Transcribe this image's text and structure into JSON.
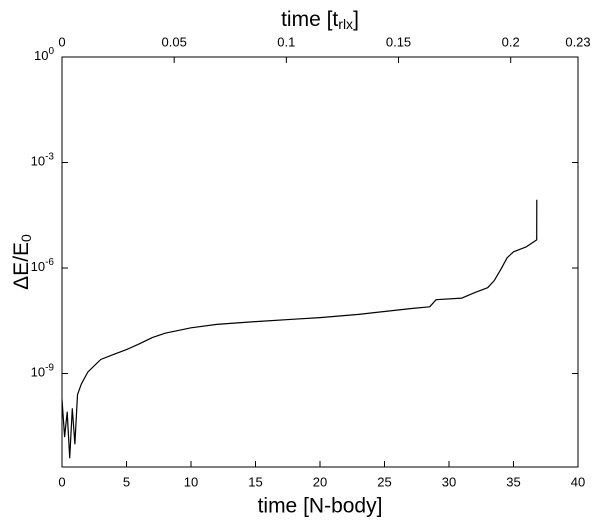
{
  "chart_data": {
    "type": "line",
    "xlabel": "time [N-body]",
    "x2label": "time [t",
    "x2label_sub": "rlx",
    "x2label_end": "]",
    "ylabel": "ΔE/E",
    "ylabel_sub": "0",
    "xlim": [
      0,
      40
    ],
    "xticks": [
      0,
      5,
      10,
      15,
      20,
      25,
      30,
      35,
      40
    ],
    "x2lim": [
      0,
      0.23
    ],
    "x2ticks": [
      0,
      0.05,
      0.1,
      0.15,
      0.2,
      0.23
    ],
    "ylim": [
      2.2e-12,
      1
    ],
    "log_y": true,
    "yticks": [
      {
        "value": 1,
        "label": "10",
        "exponent": "0"
      },
      {
        "value": 0.001,
        "label": "10",
        "exponent": "-3"
      },
      {
        "value": 1e-06,
        "label": "10",
        "exponent": "-6"
      },
      {
        "value": 1e-09,
        "label": "10",
        "exponent": "-9"
      }
    ],
    "grid": false,
    "series": [
      {
        "color": "#000000",
        "x": [
          0,
          0.2,
          0.4,
          0.6,
          0.8,
          1.0,
          1.2,
          1.5,
          2,
          3,
          4,
          5,
          6,
          7,
          8,
          10,
          12,
          15,
          18,
          20,
          23,
          25,
          27,
          28.5,
          29,
          31,
          32,
          33,
          33.5,
          34,
          34.5,
          35,
          36,
          36.8,
          36.81
        ],
        "values": [
          1.8e-10,
          1.6e-11,
          8e-11,
          4e-12,
          1e-10,
          1e-11,
          2.5e-10,
          5e-10,
          1.1e-09,
          2.5e-09,
          3.5e-09,
          4.8e-09,
          7e-09,
          1.05e-08,
          1.4e-08,
          2e-08,
          2.5e-08,
          3e-08,
          3.5e-08,
          3.9e-08,
          4.8e-08,
          5.8e-08,
          7e-08,
          7.9e-08,
          1.26e-07,
          1.4e-07,
          2e-07,
          2.75e-07,
          4.4e-07,
          8.9e-07,
          1.95e-06,
          2.9e-06,
          4e-06,
          6.3e-06,
          8.7e-05
        ]
      }
    ]
  }
}
